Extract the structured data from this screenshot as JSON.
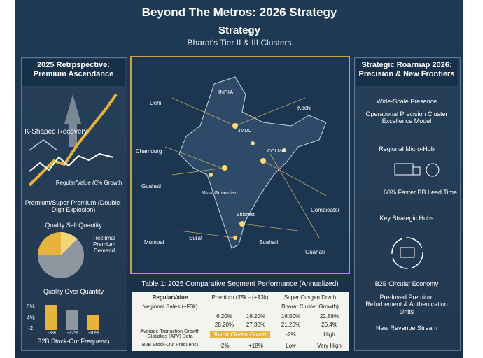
{
  "header": {
    "title": "Beyond The Metros: 2026 Strategy",
    "title2": "Strategy",
    "subtitle": "Bharat's Tier II & III Clusters"
  },
  "left": {
    "heading": "2025 Retrpspective: Premium Ascendance",
    "k_label": "K-Shaped Recovery",
    "k_sub": "Regular/Value (6% Growth",
    "premium_title": "Premium/Super-Premium (Double-Digit Explosion)",
    "quality_label": "Quality Sell Quantity",
    "pie_label": "Reelirnal Premium Demand",
    "quality_over": "Quality Over Quantity",
    "bar_yticks": [
      "6%",
      "4%",
      "-2"
    ],
    "bar_xlabels": [
      "-3%",
      "-72%",
      "-10%"
    ],
    "bar_title": "B2B Stock-Out Frequenc)"
  },
  "map": {
    "labels": [
      "INDIA",
      "Dehi",
      "Kochi",
      "Chamdurg",
      "Guahati",
      "Combieater",
      "Mumbai",
      "Surat",
      "Suahati",
      "Guahati",
      "JMDC",
      "COLMG",
      "Mssk Gmaadiez",
      "Shiorest"
    ]
  },
  "right": {
    "heading": "Strategic Roarmap 2026: Precision & New Frontiers",
    "presence": "Wide-Scale Presence",
    "precision": "Operational Precision Cluster Excellence Model",
    "microhub": "Regional Micro-Hub",
    "lead_time": "60% Faster BB Lead Time",
    "hubs": "Key Strategic Hubs",
    "circular": "B2B Circular Economy",
    "preloved": "Pre-loved Premium Refurbement & Authentcation Units",
    "revenue": "New Revenue Stream"
  },
  "table": {
    "caption": "Table 1: 2025 Comparative Segment Performance (Annualized)",
    "header": [
      "RegularValue",
      "Premium (₹5k - (+₹3k)",
      "Super Cusgen Drwth"
    ],
    "row0": [
      "Negional Sales (+F3k)",
      "Bharat Cluster Growth)"
    ],
    "row1": [
      "6.20%",
      "16.20%",
      "16.50%",
      "22.88%"
    ],
    "row2": [
      "28.20%",
      "27.30%",
      "21.20%",
      "26.4%"
    ],
    "row3": [
      "Average Tranaction Growth Glatiallos (ATV) Deta",
      "Bharat Cluster Growth",
      "-2%",
      "High"
    ],
    "row4": [
      "B2B Stock-Out Frequenc)",
      "-2%",
      "+18%",
      "Low",
      "Very High"
    ]
  }
}
